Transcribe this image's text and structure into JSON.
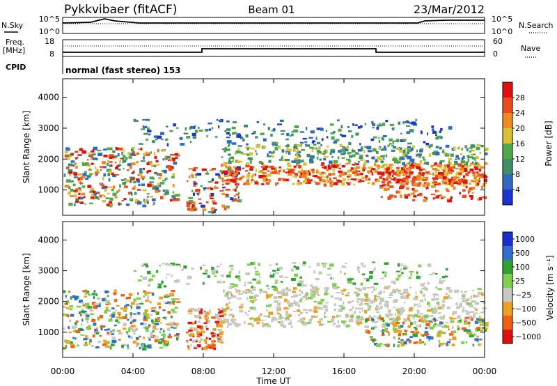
{
  "header": {
    "station": "Pykkvibaer (fitACF)",
    "beam": "Beam 01",
    "date": "23/Mar/2012"
  },
  "top_strip": {
    "left_label": "N.Sky",
    "left_ticks": [
      "10^5",
      "10^0"
    ],
    "right_ticks": [
      "10^5",
      "10^0"
    ],
    "right_label": "N.Search"
  },
  "freq_strip": {
    "left_label_1": "Freq.",
    "left_label_2": "[MHz]",
    "left_ticks": [
      "18",
      "8"
    ],
    "right_ticks": [
      "60",
      "0"
    ],
    "right_label": "Nave",
    "cpid_label": "CPID",
    "cpid_text": "normal (fast stereo) 153"
  },
  "colors": {
    "power_scale": [
      "#1a35d6",
      "#2f6bc0",
      "#3f8f67",
      "#4fa84a",
      "#d9c232",
      "#f08a1e",
      "#f04a1a",
      "#e01010"
    ],
    "velocity_scale": [
      "#1a2fd0",
      "#2e6fd0",
      "#2fa22f",
      "#7fd04f",
      "#c8c8c2",
      "#f0a020",
      "#f06010",
      "#e01010"
    ]
  },
  "chart_data": [
    {
      "type": "heatmap",
      "title": "",
      "xlabel": "Time UT",
      "ylabel": "Slant Range [km]",
      "x_ticks": [
        "00:00",
        "04:00",
        "08:00",
        "12:00",
        "16:00",
        "20:00",
        "00:00"
      ],
      "xlim_hours": [
        0,
        24
      ],
      "y_ticks": [
        "1000",
        "2000",
        "3000",
        "4000"
      ],
      "ylim": [
        180,
        4600
      ],
      "colorbar_label": "Power [dB]",
      "colorbar_ticks": [
        "4",
        "8",
        "12",
        "16",
        "20",
        "24",
        "28"
      ],
      "colorbar_range": [
        0,
        32
      ]
    },
    {
      "type": "heatmap",
      "title": "",
      "xlabel": "Time UT",
      "ylabel": "Slant Range [km]",
      "x_ticks": [
        "00:00",
        "04:00",
        "08:00",
        "12:00",
        "16:00",
        "20:00",
        "00:00"
      ],
      "xlim_hours": [
        0,
        24
      ],
      "y_ticks": [
        "1000",
        "2000",
        "3000",
        "4000"
      ],
      "ylim": [
        180,
        4600
      ],
      "colorbar_label": "Velocity [m s⁻¹]",
      "colorbar_ticks": [
        "1000",
        "500",
        "100",
        "25",
        "−25",
        "−100",
        "−500",
        "−1000"
      ]
    }
  ]
}
